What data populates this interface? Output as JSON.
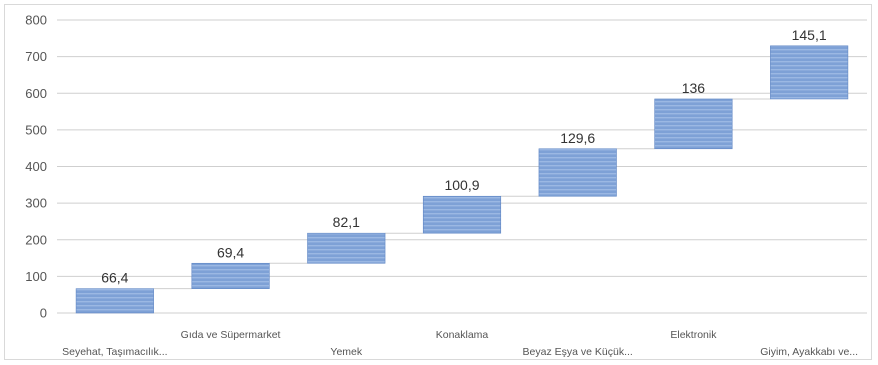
{
  "chart_data": {
    "type": "bar",
    "subtype": "waterfall",
    "title": "",
    "xlabel": "",
    "ylabel": "",
    "ylim": [
      0,
      800
    ],
    "yticks": [
      0,
      100,
      200,
      300,
      400,
      500,
      600,
      700,
      800
    ],
    "grid": true,
    "legend": "none",
    "categories": [
      "Seyehat, Taşımacılık...",
      "Gıda ve Süpermarket",
      "Yemek",
      "Konaklama",
      "Beyaz Eşya ve Küçük...",
      "Elektronik",
      "Giyim, Ayakkabı ve..."
    ],
    "values": [
      66.4,
      69.4,
      82.1,
      100.9,
      129.6,
      136,
      145.1
    ],
    "data_labels": [
      "66,4",
      "69,4",
      "82,1",
      "100,9",
      "129,6",
      "136",
      "145,1"
    ],
    "colors": {
      "bar_fill": "#7ea1d6",
      "bar_stripe": "#9bb8e3",
      "bar_edge": "#5f86c4"
    }
  }
}
